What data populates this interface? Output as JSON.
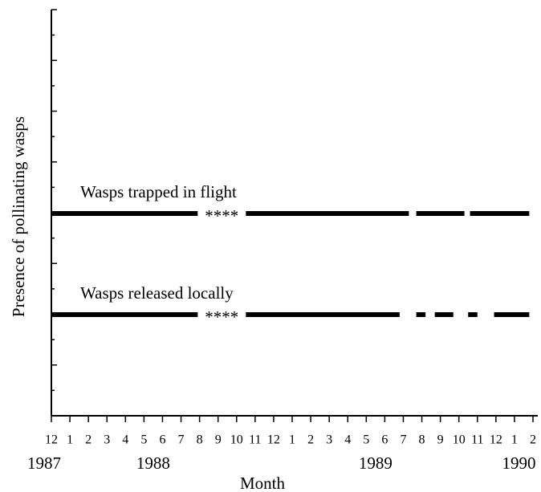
{
  "chart_data": {
    "type": "presence",
    "xlabel": "Month",
    "ylabel": "Presence of pollinating wasps",
    "categories": [
      "12",
      "1",
      "2",
      "3",
      "4",
      "5",
      "6",
      "7",
      "8",
      "9",
      "10",
      "11",
      "12",
      "1",
      "2",
      "3",
      "4",
      "5",
      "6",
      "7",
      "8",
      "9",
      "10",
      "11",
      "12",
      "1",
      "2"
    ],
    "years": [
      "1987",
      "1988",
      "1989",
      "1990"
    ],
    "xlim": [
      0,
      26
    ],
    "series": [
      {
        "name": "Wasps trapped in flight",
        "color": "#000000",
        "gap_label": "****",
        "segments": [
          [
            0,
            7.9
          ],
          [
            10.5,
            19.3
          ],
          [
            19.7,
            22.3
          ],
          [
            22.6,
            25.8
          ]
        ]
      },
      {
        "name": "Wasps released locally",
        "color": "#000000",
        "gap_label": "****",
        "segments": [
          [
            0,
            7.9
          ],
          [
            10.5,
            18.8
          ],
          [
            19.7,
            20.2
          ],
          [
            20.7,
            21.7
          ],
          [
            22.5,
            23.0
          ],
          [
            23.9,
            25.8
          ]
        ]
      }
    ]
  }
}
